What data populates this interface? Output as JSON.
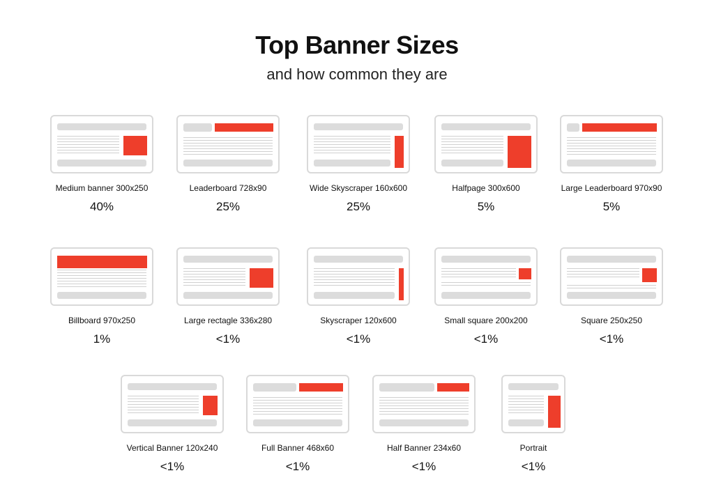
{
  "header": {
    "title": "Top Banner Sizes",
    "subtitle": "and how common they are"
  },
  "banners": [
    {
      "name": "Medium banner 300x250",
      "share": "40%"
    },
    {
      "name": "Leaderboard 728x90",
      "share": "25%"
    },
    {
      "name": "Wide Skyscraper 160x600",
      "share": "25%"
    },
    {
      "name": "Halfpage 300x600",
      "share": "5%"
    },
    {
      "name": "Large Leaderboard 970x90",
      "share": "5%"
    },
    {
      "name": "Billboard 970x250",
      "share": "1%"
    },
    {
      "name": "Large rectagle 336x280",
      "share": "<1%"
    },
    {
      "name": "Skyscraper 120x600",
      "share": "<1%"
    },
    {
      "name": "Small square 200x200",
      "share": "<1%"
    },
    {
      "name": "Square 250x250",
      "share": "<1%"
    },
    {
      "name": "Vertical Banner 120x240",
      "share": "<1%"
    },
    {
      "name": "Full Banner 468x60",
      "share": "<1%"
    },
    {
      "name": "Half Banner 234x60",
      "share": "<1%"
    },
    {
      "name": "Portrait",
      "share": "<1%"
    }
  ],
  "colors": {
    "ad": "#ee3e2b",
    "frame": "#d9d9d9",
    "placeholder": "#dcdcdc"
  }
}
